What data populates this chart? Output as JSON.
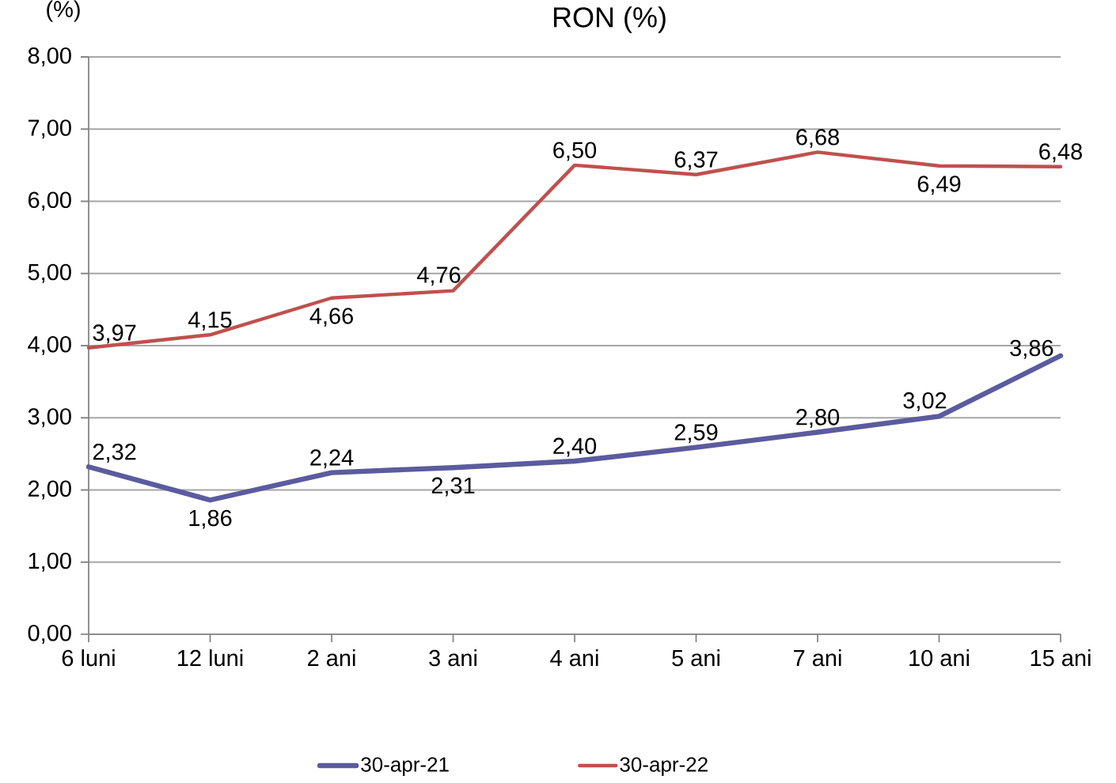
{
  "chart_data": {
    "type": "line",
    "title": "RON (%)",
    "ylabel": "(%)",
    "categories": [
      "6 luni",
      "12 luni",
      "2 ani",
      "3 ani",
      "4 ani",
      "5 ani",
      "7 ani",
      "10 ani",
      "15 ani"
    ],
    "series": [
      {
        "name": "30-apr-21",
        "color": "#5b5b9e",
        "values": [
          2.32,
          1.86,
          2.24,
          2.31,
          2.4,
          2.59,
          2.8,
          3.02,
          3.86
        ],
        "value_labels": [
          "2,32",
          "1,86",
          "2,24",
          "2,31",
          "2,40",
          "2,59",
          "2,80",
          "3,02",
          "3,86"
        ]
      },
      {
        "name": "30-apr-22",
        "color": "#c0504d",
        "values": [
          3.97,
          4.15,
          4.66,
          4.76,
          6.5,
          6.37,
          6.68,
          6.49,
          6.48
        ],
        "value_labels": [
          "3,97",
          "4,15",
          "4,66",
          "4,76",
          "6,50",
          "6,37",
          "6,68",
          "6,49",
          "6,48"
        ]
      }
    ],
    "ylim": [
      0,
      8
    ],
    "yticks": [
      {
        "value": 0,
        "label": "0,00"
      },
      {
        "value": 1,
        "label": "1,00"
      },
      {
        "value": 2,
        "label": "2,00"
      },
      {
        "value": 3,
        "label": "3,00"
      },
      {
        "value": 4,
        "label": "4,00"
      },
      {
        "value": 5,
        "label": "5,00"
      },
      {
        "value": 6,
        "label": "6,00"
      },
      {
        "value": 7,
        "label": "7,00"
      },
      {
        "value": 8,
        "label": "8,00"
      }
    ],
    "grid": "y",
    "legend": "bottom",
    "marker": "none",
    "line_style": "solid"
  }
}
